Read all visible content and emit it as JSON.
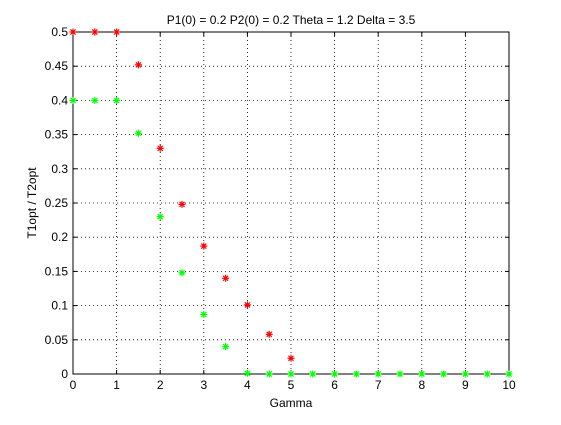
{
  "chart_data": {
    "type": "scatter",
    "title": "P1(0) = 0.2 P2(0) = 0.2 Theta = 1.2 Delta = 3.5",
    "xlabel": "Gamma",
    "ylabel": "T1opt / T2opt",
    "xlim": [
      0,
      10
    ],
    "ylim": [
      0,
      0.5
    ],
    "xticks": [
      0,
      1,
      2,
      3,
      4,
      5,
      6,
      7,
      8,
      9,
      10
    ],
    "xtick_labels": [
      "0",
      "1",
      "2",
      "3",
      "4",
      "5",
      "6",
      "7",
      "8",
      "9",
      "10"
    ],
    "yticks": [
      0,
      0.05,
      0.1,
      0.15,
      0.2,
      0.25,
      0.3,
      0.35,
      0.4,
      0.45,
      0.5
    ],
    "ytick_labels": [
      "0",
      "0.05",
      "0.1",
      "0.15",
      "0.2",
      "0.25",
      "0.3",
      "0.35",
      "0.4",
      "0.45",
      "0.5"
    ],
    "grid": true,
    "marker": "*",
    "series": [
      {
        "color": "#ff0000",
        "x": [
          0,
          0.5,
          1,
          1.5,
          2,
          2.5,
          3,
          3.5,
          4,
          4.5,
          5
        ],
        "y": [
          0.5,
          0.5,
          0.5,
          0.452,
          0.33,
          0.248,
          0.187,
          0.14,
          0.101,
          0.058,
          0.023
        ]
      },
      {
        "color": "#00ff00",
        "x": [
          0,
          0.5,
          1,
          1.5,
          2,
          2.5,
          3,
          3.5,
          4,
          4.5,
          5,
          5.5,
          6,
          6.5,
          7,
          7.5,
          8,
          8.5,
          9,
          9.5,
          10
        ],
        "y": [
          0.4,
          0.4,
          0.4,
          0.352,
          0.23,
          0.148,
          0.087,
          0.04,
          0.001,
          0,
          0,
          0,
          0,
          0,
          0,
          0,
          0,
          0,
          0,
          0,
          0
        ]
      }
    ]
  }
}
